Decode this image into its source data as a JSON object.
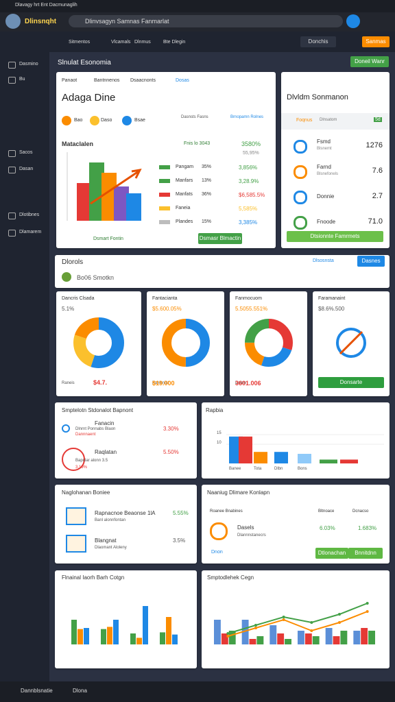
{
  "browser": {
    "tab": "Dlavagy hrt Ent Dacmunaglih",
    "brand": "Dlinsnqht",
    "address": "Dlinvsagyn Samnas Fanmarlat"
  },
  "nav": {
    "items": [
      "Sitmentos",
      "Vlcamals",
      "Dlnmus",
      "Bte Dlegin"
    ],
    "search": "Donchis",
    "cta": "Sanmas"
  },
  "sidebar": [
    "Dasmino",
    "Bu",
    "Sacos",
    "Dasan",
    "Dlotibnes",
    "Dlamarem"
  ],
  "header": {
    "title": "Slnulat Esonomia",
    "button": "Doneil Wanr"
  },
  "overview": {
    "tabs": [
      "Panaot",
      "Bantnnenos",
      "Dsaacnonts",
      "Dosas"
    ],
    "title": "Adaga Dine",
    "pills": [
      "Bao",
      "Daso",
      "Bsae"
    ],
    "metas": [
      "Dasnsts Fasns",
      "Brnopamn Rolnes"
    ],
    "chart_title": "Mataclalen",
    "chart_note": "Fnis lo 3043",
    "top_value": "3580%",
    "top_sub": "55,95%",
    "legend": [
      {
        "name": "Pangam",
        "pct": "35%",
        "value": "3,856%",
        "color": "#43a047"
      },
      {
        "name": "Manfars",
        "pct": "13%",
        "value": "3,28.9%",
        "color": "#43a047"
      },
      {
        "name": "Manfats",
        "pct": "36%",
        "value": "$6,585.5%",
        "color": "#e53935"
      },
      {
        "name": "Faneia",
        "value": "5,585%",
        "color": "#fbc02d"
      },
      {
        "name": "Plandes",
        "pct": "15%",
        "value": "3,385%",
        "color": "#bdbdbd"
      }
    ],
    "chart": {
      "type": "bar",
      "values": [
        55,
        85,
        70,
        50,
        40
      ],
      "colors": [
        "#e53935",
        "#43a047",
        "#fb8c00",
        "#7e57c2",
        "#1e88e5"
      ],
      "ylim": [
        0,
        100
      ]
    },
    "link": "Dsmart Fontin",
    "button": "Dsmasr Blmactin"
  },
  "summary": {
    "title": "Dlvldm Sonmanon",
    "label": "Foqnus",
    "badge": "Dlnsatom",
    "tag": "5d",
    "items": [
      {
        "name": "Fsmd",
        "sub": "Blsnemt",
        "value": "1276"
      },
      {
        "name": "Farnd",
        "sub": "Blsnefonels",
        "value": "7.6"
      },
      {
        "name": "Donnie",
        "value": "2.7"
      },
      {
        "name": "Fnoode",
        "value": "71.0"
      }
    ],
    "button": "Dtsionnte Famrmets"
  },
  "section": {
    "title": "Dlorols",
    "subtitle": "Bo06 Smotkn",
    "link": "Dlsosnsta",
    "button": "Dasnes"
  },
  "donuts": [
    {
      "title": "Dancris Clsada",
      "sub": "5.1%",
      "footer": "Raneis",
      "value": "$4.7.",
      "segments": [
        {
          "value": 55,
          "color": "#1e88e5"
        },
        {
          "value": 25,
          "color": "#fbc02d"
        },
        {
          "value": 20,
          "color": "#fb8c00"
        }
      ]
    },
    {
      "title": "Fantacianta",
      "sub": "$5.600.05%",
      "footer": "Fanisnlat",
      "value": "$19.000",
      "segments": [
        {
          "value": 50,
          "color": "#1e88e5"
        },
        {
          "value": 50,
          "color": "#fb8c00"
        }
      ]
    },
    {
      "title": "Fanmocuom",
      "sub": "5.5055.551%",
      "footer": "Dolen",
      "value": "3601.006",
      "segments": [
        {
          "value": 30,
          "color": "#e53935"
        },
        {
          "value": 25,
          "color": "#1e88e5"
        },
        {
          "value": 20,
          "color": "#fb8c00"
        },
        {
          "value": 25,
          "color": "#43a047"
        }
      ]
    },
    {
      "title": "Faramanaint",
      "sub": "$8.6%.500",
      "button": "Donsarte"
    }
  ],
  "report": {
    "title": "Smptelotn Stdonalot Bapnont",
    "rows": [
      {
        "name": "Fanacin",
        "sub": "Dlnrnt Ponnabs Blaon",
        "value": "3.30%",
        "note": "Dannnaent"
      },
      {
        "name": "Raqlatan",
        "sub": "Bapolar alonn 3.5",
        "value": "5.50%",
        "note": "3.19%"
      }
    ]
  },
  "ratio": {
    "title": "Rapbia",
    "chart": {
      "type": "bar",
      "categories": [
        "Banee",
        null,
        "Tota",
        "Dlbn",
        "Bons",
        null,
        null
      ],
      "values": [
        14,
        14,
        6,
        6,
        5,
        2,
        2
      ],
      "colors": [
        "#1e88e5",
        "#e53935",
        "#fb8c00",
        "#1e88e5",
        "#90caf9",
        "#43a047",
        "#e53935"
      ],
      "ylim": [
        0,
        20
      ],
      "yticks": [
        10,
        15
      ]
    }
  },
  "network": {
    "title": "Naglohanan Boniee",
    "rows": [
      {
        "name": "Rapnacnoe Beaonse 1lA",
        "sub": "Banl alonnfontan",
        "value": "5.55%"
      },
      {
        "name": "Blangnat",
        "sub": "Dlaomant Aloleny",
        "value": "3.5%"
      }
    ]
  },
  "market": {
    "title": "Naaniug Dlimare Konlapn",
    "cols": [
      "Roanee Bnabines",
      "Bltnoace",
      "Dcnacso"
    ],
    "row": {
      "name": "Dasels",
      "sub": "Dlannnstanecrs",
      "v1": "6.03%",
      "v2": "1.683%"
    },
    "buttons": [
      "Dtlonachan",
      "Bnnitdnn"
    ],
    "footer": "Dnon"
  },
  "finance": {
    "title": "Flnainal Iaorh Barh Cotgn",
    "chart": {
      "type": "bar",
      "ylim": [
        0,
        100
      ],
      "series": [
        {
          "color": "#43a047",
          "values": [
            45,
            28,
            20,
            22
          ]
        },
        {
          "color": "#fb8c00",
          "values": [
            28,
            32,
            12,
            50
          ]
        },
        {
          "color": "#1e88e5",
          "values": [
            30,
            45,
            70,
            18
          ]
        }
      ]
    }
  },
  "combo": {
    "title": "Smptodlehek Cegn",
    "chart": {
      "type": "bar",
      "ylim": [
        0,
        100
      ],
      "series": [
        {
          "color": "#5b8fd8",
          "values": [
            45,
            45,
            35,
            25,
            30,
            25
          ]
        },
        {
          "color": "#e53935",
          "values": [
            20,
            10,
            20,
            20,
            15,
            30
          ]
        },
        {
          "color": "#43a047",
          "values": [
            25,
            15,
            10,
            15,
            25,
            25
          ]
        }
      ],
      "lines": [
        {
          "color": "#43a047",
          "values": [
            20,
            35,
            50,
            40,
            55,
            75
          ]
        },
        {
          "color": "#fb8c00",
          "values": [
            15,
            30,
            45,
            25,
            40,
            60
          ]
        }
      ]
    }
  },
  "footer": [
    "Dannblsnatie",
    "Dlona"
  ]
}
